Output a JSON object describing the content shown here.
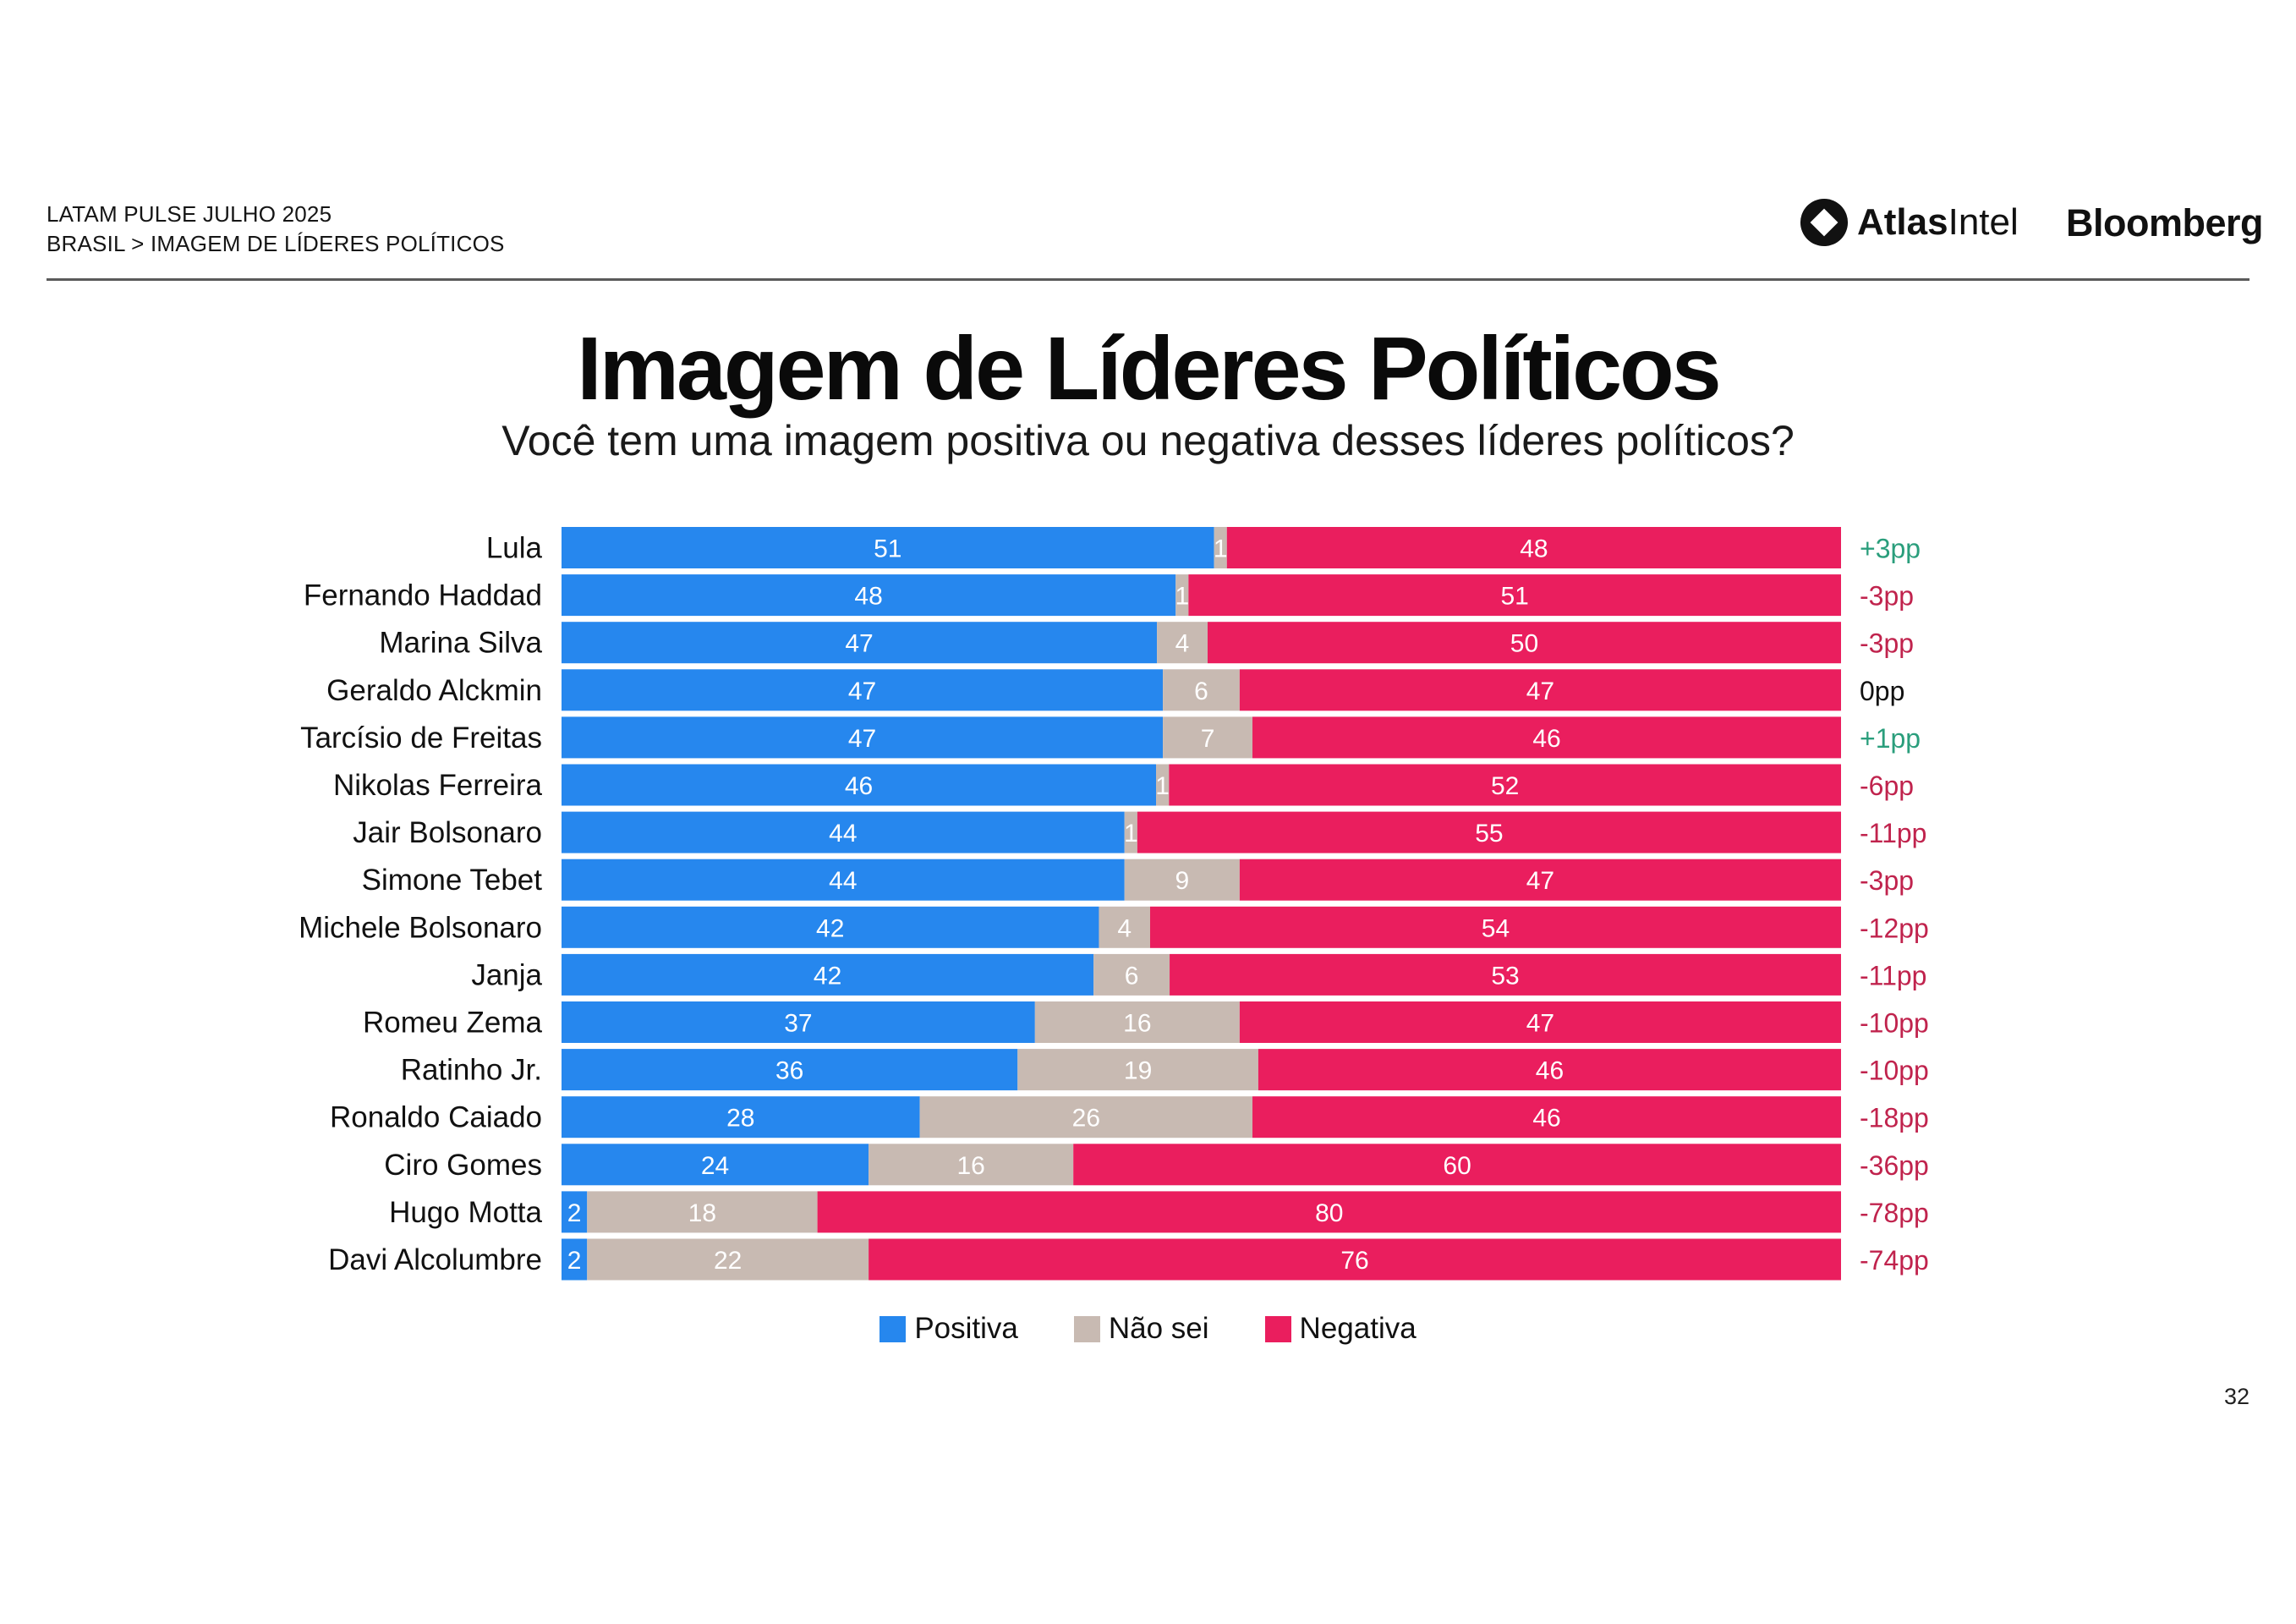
{
  "header": {
    "line1": "LATAM PULSE JULHO 2025",
    "line2": "BRASIL > IMAGEM DE LÍDERES POLÍTICOS"
  },
  "brands": {
    "atlas_part1": "Atlas",
    "atlas_part2": "Intel",
    "bloomberg": "Bloomberg"
  },
  "title": "Imagem de Líderes Políticos",
  "subtitle": "Você tem uma imagem positiva ou negativa desses líderes políticos?",
  "colors": {
    "positive": "#2687ee",
    "unknown": "#c8bab2",
    "negative": "#ea1e5e",
    "diff_positive": "#2a9e7c",
    "diff_negative": "#c0234d",
    "diff_neutral": "#111111"
  },
  "chart_data": {
    "type": "bar",
    "orientation": "horizontal",
    "stacked": true,
    "title": "Imagem de Líderes Políticos",
    "subtitle": "Você tem uma imagem positiva ou negativa desses líderes políticos?",
    "categories": [
      "Lula",
      "Fernando Haddad",
      "Marina Silva",
      "Geraldo Alckmin",
      "Tarcísio de Freitas",
      "Nikolas Ferreira",
      "Jair Bolsonaro",
      "Simone Tebet",
      "Michele Bolsonaro",
      "Janja",
      "Romeu Zema",
      "Ratinho Jr.",
      "Ronaldo Caiado",
      "Ciro Gomes",
      "Hugo Motta",
      "Davi Alcolumbre"
    ],
    "series": [
      {
        "name": "Positiva",
        "values": [
          51,
          48,
          47,
          47,
          47,
          46,
          44,
          44,
          42,
          42,
          37,
          36,
          28,
          24,
          2,
          2
        ]
      },
      {
        "name": "Não sei",
        "values": [
          1,
          1,
          4,
          6,
          7,
          1,
          1,
          9,
          4,
          6,
          16,
          19,
          26,
          16,
          18,
          22
        ]
      },
      {
        "name": "Negativa",
        "values": [
          48,
          51,
          50,
          47,
          46,
          52,
          55,
          47,
          54,
          53,
          47,
          46,
          46,
          60,
          80,
          76
        ]
      }
    ],
    "net": [
      "+3pp",
      "-3pp",
      "-3pp",
      "0pp",
      "+1pp",
      "-6pp",
      "-11pp",
      "-3pp",
      "-12pp",
      "-11pp",
      "-10pp",
      "-10pp",
      "-18pp",
      "-36pp",
      "-78pp",
      "-74pp"
    ],
    "legend": [
      "Positiva",
      "Não sei",
      "Negativa"
    ],
    "legend_position": "bottom-center",
    "xlim": [
      0,
      100
    ],
    "grid": false
  },
  "page_number": "32"
}
